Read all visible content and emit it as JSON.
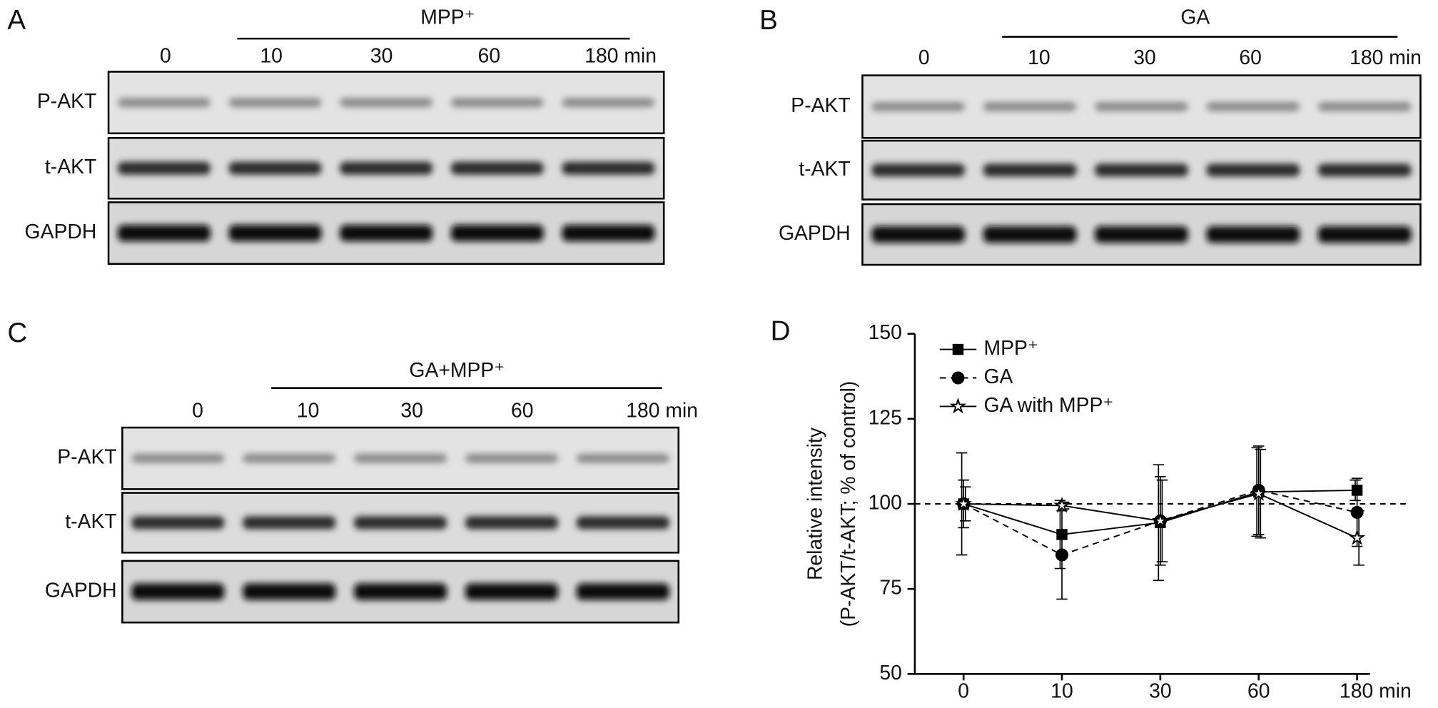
{
  "panels": [
    {
      "label": "A",
      "treatment": "MPP⁺",
      "lanes": [
        "0",
        "10",
        "30",
        "60",
        "180 min"
      ],
      "rows": [
        "P-AKT",
        "t-AKT",
        "GAPDH"
      ]
    },
    {
      "label": "B",
      "treatment": "GA",
      "lanes": [
        "0",
        "10",
        "30",
        "60",
        "180 min"
      ],
      "rows": [
        "P-AKT",
        "t-AKT",
        "GAPDH"
      ]
    },
    {
      "label": "C",
      "treatment": "GA+MPP⁺",
      "lanes": [
        "0",
        "10",
        "30",
        "60",
        "180 min"
      ],
      "rows": [
        "P-AKT",
        "t-AKT",
        "GAPDH"
      ]
    }
  ],
  "chart_data": {
    "type": "line",
    "label": "D",
    "y_label": [
      "Relative intensity",
      "(P-AKT/t-AKT; % of control)"
    ],
    "categories": [
      "0",
      "10",
      "30",
      "60",
      "180 min"
    ],
    "ylim": [
      50,
      150
    ],
    "yticks": [
      50,
      75,
      100,
      125,
      150
    ],
    "reference_line": 100,
    "series": [
      {
        "name": "MPP⁺",
        "color": "#000000",
        "marker": "square",
        "dash": false,
        "values": [
          100,
          91,
          94.5,
          103.5,
          104
        ],
        "errors": [
          15,
          10,
          17,
          13,
          3
        ]
      },
      {
        "name": "GA",
        "color": "#000000",
        "marker": "circle",
        "dash": true,
        "values": [
          100,
          85,
          95,
          104,
          97.5
        ],
        "errors": [
          7,
          13,
          13,
          13,
          10
        ]
      },
      {
        "name": "GA with MPP⁺",
        "color": "#000000",
        "marker": "star",
        "dash": false,
        "values": [
          100,
          99.5,
          95,
          103,
          90
        ],
        "errors": [
          5,
          1,
          12,
          13,
          8
        ]
      }
    ]
  }
}
